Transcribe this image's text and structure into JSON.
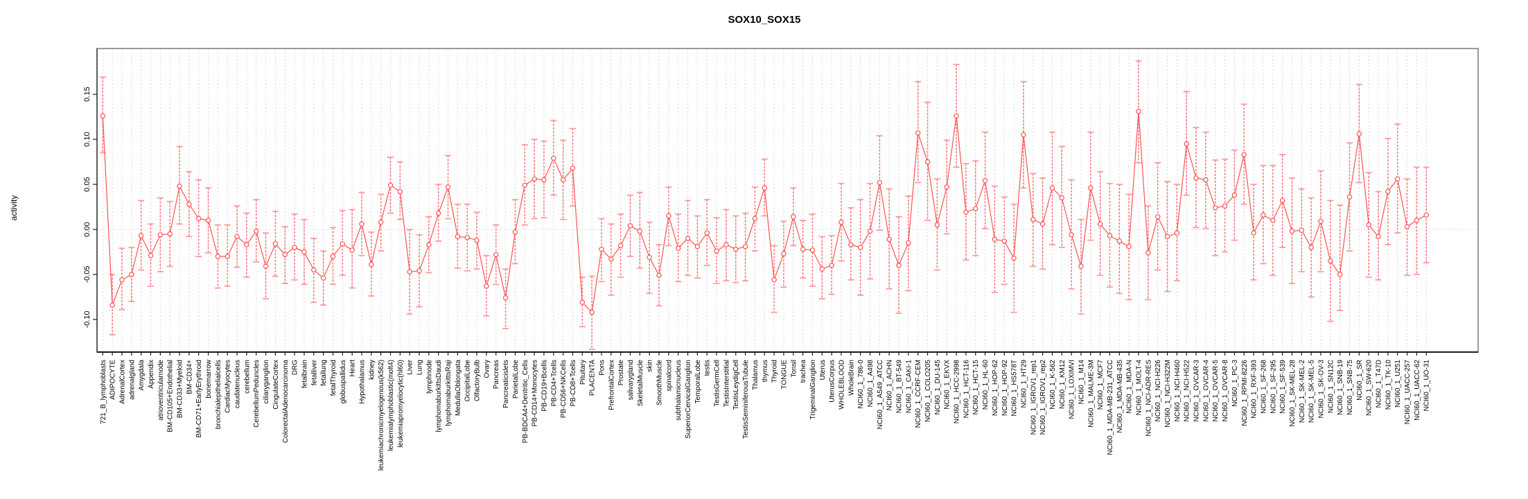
{
  "chart_data": {
    "type": "line",
    "title": "SOX10_SOX15",
    "xlabel": "",
    "ylabel": "activity",
    "legend": "none",
    "grid": "vertical dashed per category, dotted horizontal zero line",
    "marker": "open-circle",
    "error_bars": true,
    "ylim": [
      -0.136,
      0.201
    ],
    "yticks": [
      -0.1,
      -0.05,
      0.0,
      0.05,
      0.1,
      0.15
    ],
    "ytick_labels": [
      "-0.10",
      "-0.05",
      "0.00",
      "0.05",
      "0.10",
      "0.15"
    ],
    "colors": {
      "series": "#ff5050",
      "error_stem": "#ff7a7a",
      "error_cap": "#ff9a9a",
      "gridline": "#d9d9d9",
      "zero_line": "#c8c8c8",
      "box": "#9a9a9a",
      "axis": "#1a1a1a",
      "background": "#ffffff"
    },
    "categories": [
      "721_B_lymphoblasts",
      "ADIPOCYTE",
      "AdrenalCortex",
      "adrenalgland",
      "Amygdala",
      "Appendix",
      "atrioventricularnode",
      "BM-CD105+Endothelial",
      "BM-CD33+Myeloid",
      "BM-CD34+",
      "BM-CD71+EarlyErythroid",
      "bonemarrow",
      "bronchialepithelialcells",
      "CardiacMyocytes",
      "caudatenucleus",
      "cerebellum",
      "CerebellumPeduncles",
      "ciliaryganglion",
      "CingulateCortex",
      "ColorectalAdenocarcinoma",
      "DRG",
      "fetalbrain",
      "fetalliver",
      "fetallung",
      "fetalThyroid",
      "globuspallidus",
      "Heart",
      "Hypothalamus",
      "kidney",
      "leukemiachronicmyelogenous(k562)",
      "leukemialymphoblastic(molt4)",
      "leukemiapromyelocytic(hl60)",
      "Liver",
      "Lung",
      "lymphnode",
      "lymphomaburkittsDaudi",
      "lymphomaburkittsRaji",
      "MedullaOblongata",
      "OccipitalLobe",
      "OlfactoryBulb",
      "Ovary",
      "Pancreas",
      "Pancreaticislets",
      "ParietalLobe",
      "PB-BDCA4+Dentritic_Cells",
      "PB-CD14+Monocytes",
      "PB-CD19+Bcells",
      "PB-CD4+Tcells",
      "PB-CD56+NKCells",
      "PB-CD8+Tcells",
      "Pituitary",
      "PLACENTA",
      "Pons",
      "PrefrontalCortex",
      "Prostate",
      "salivarygland",
      "SkeletalMuscle",
      "skin",
      "SmoothMuscle",
      "spinalcord",
      "subthalamicnucleus",
      "SuperiorCervicalGanglion",
      "TemporalLobe",
      "testis",
      "TestisGermCell",
      "TestisInterstitial",
      "TestisLeydigCell",
      "TestisSeminiferousTubule",
      "Thalamus",
      "thymus",
      "Thyroid",
      "TONGUE",
      "Tonsil",
      "trachea",
      "TrigeminalGanglion",
      "Uterus",
      "UterusCorpus",
      "WHOLEBLOOD",
      "WholeBrain",
      "NCI60_1_786-0",
      "NCI60_1_A498",
      "NCI60_1_A549_ATCC",
      "NCI60_1_ACHN",
      "NCI60_1_BT-549",
      "NCI60_1_CAKI-1",
      "NCI60_1_CCRF-CEM",
      "NCI60_1_COLO205",
      "NCI60_1_DU-145",
      "NCI60_1_EKVX",
      "NCI60_1_HCC-2998",
      "NCI60_1_HCT-116",
      "NCI60_1_HCT-15",
      "NCI60_1_HL-60",
      "NCI60_1_HOP-62",
      "NCI60_1_HOP-92",
      "NCI60_1_HS578T",
      "NCI60_1_HT29",
      "NCI60_1_IGROV1_rep1",
      "NCI60_1_IGROV1_rep2",
      "NCI60_1_K-562",
      "NCI60_1_KM12",
      "NCI60_1_LOXIMVI",
      "NCI60_1_M14",
      "NCI60_1_MALME-3M",
      "NCI60_1_MCF7",
      "NCI60_1_MDA-MB-231_ATCC",
      "NCI60_1_MDA-MB-435",
      "NCI60_1_MDA-N",
      "NCI60_1_MOLT-4",
      "NCI60_1_NCI-ADR-RES",
      "NCI60_1_NCI-H226",
      "NCI60_1_NCI-H322M",
      "NCI60_1_NCI-H460",
      "NCI60_1_NCI-H522",
      "NCI60_1_OVCAR-3",
      "NCI60_1_OVCAR-4",
      "NCI60_1_OVCAR-5",
      "NCI60_1_OVCAR-8",
      "NCI60_1_PC-3",
      "NCI60_1_RPMI-8226",
      "NCI60_1_RXF-393",
      "NCI60_1_SF-268",
      "NCI60_1_SF-295",
      "NCI60_1_SF-539",
      "NCI60_1_SK-MEL-28",
      "NCI60_1_SK-MEL-2",
      "NCI60_1_SK-MEL-5",
      "NCI60_1_SK-OV-3",
      "NCI60_1_SN12C",
      "NCI60_1_SNB-19",
      "NCI60_1_SNB-75",
      "NCI60_1_SR",
      "NCI60_1_SW-620",
      "NCI60_1_T47D",
      "NCI60_1_TK-10",
      "NCI60_1_U251",
      "NCI60_1_UACC-257",
      "NCI60_1_UACC-62",
      "NCI60_1_UO-31"
    ],
    "values": [
      0.126,
      -0.084,
      -0.056,
      -0.05,
      -0.007,
      -0.029,
      -0.006,
      -0.005,
      0.048,
      0.028,
      0.012,
      0.01,
      -0.03,
      -0.03,
      -0.008,
      -0.017,
      -0.002,
      -0.041,
      -0.016,
      -0.028,
      -0.02,
      -0.025,
      -0.045,
      -0.054,
      -0.03,
      -0.016,
      -0.023,
      0.006,
      -0.039,
      0.008,
      0.049,
      0.042,
      -0.047,
      -0.046,
      -0.017,
      0.018,
      0.047,
      -0.008,
      -0.009,
      -0.012,
      -0.063,
      -0.028,
      -0.076,
      -0.003,
      0.049,
      0.056,
      0.055,
      0.079,
      0.055,
      0.068,
      -0.081,
      -0.092,
      -0.022,
      -0.033,
      -0.018,
      0.004,
      -0.002,
      -0.031,
      -0.051,
      0.015,
      -0.021,
      -0.01,
      -0.019,
      -0.004,
      -0.024,
      -0.017,
      -0.022,
      -0.019,
      0.012,
      0.046,
      -0.056,
      -0.027,
      0.014,
      -0.022,
      -0.023,
      -0.044,
      -0.04,
      0.008,
      -0.017,
      -0.02,
      -0.002,
      0.052,
      -0.011,
      -0.04,
      -0.015,
      0.107,
      0.075,
      0.005,
      0.047,
      0.126,
      0.019,
      0.023,
      0.054,
      -0.011,
      -0.013,
      -0.032,
      0.105,
      0.011,
      0.006,
      0.046,
      0.035,
      -0.006,
      -0.041,
      0.046,
      0.006,
      -0.007,
      -0.013,
      -0.019,
      0.131,
      -0.026,
      0.014,
      -0.008,
      -0.004,
      0.095,
      0.057,
      0.055,
      0.024,
      0.026,
      0.038,
      0.083,
      -0.004,
      0.016,
      0.01,
      0.032,
      -0.002,
      -0.001,
      -0.02,
      0.009,
      -0.035,
      -0.05,
      0.036,
      0.106,
      0.005,
      -0.008,
      0.042,
      0.056,
      0.003,
      0.01,
      0.016
    ],
    "error_low": [
      0.085,
      -0.117,
      -0.089,
      -0.08,
      -0.045,
      -0.063,
      -0.047,
      -0.041,
      0.006,
      -0.008,
      -0.03,
      -0.026,
      -0.065,
      -0.063,
      -0.042,
      -0.053,
      -0.036,
      -0.077,
      -0.052,
      -0.06,
      -0.056,
      -0.061,
      -0.081,
      -0.084,
      -0.061,
      -0.051,
      -0.065,
      -0.029,
      -0.074,
      -0.024,
      0.018,
      0.011,
      -0.094,
      -0.086,
      -0.048,
      -0.013,
      0.012,
      -0.043,
      -0.046,
      -0.044,
      -0.096,
      -0.061,
      -0.11,
      -0.038,
      0.005,
      0.012,
      0.013,
      0.038,
      0.011,
      0.026,
      -0.108,
      -0.133,
      -0.058,
      -0.073,
      -0.053,
      -0.03,
      -0.043,
      -0.071,
      -0.085,
      -0.018,
      -0.058,
      -0.051,
      -0.054,
      -0.04,
      -0.06,
      -0.057,
      -0.059,
      -0.057,
      -0.024,
      0.015,
      -0.092,
      -0.064,
      -0.018,
      -0.054,
      -0.063,
      -0.077,
      -0.072,
      -0.035,
      -0.056,
      -0.073,
      -0.055,
      -0.001,
      -0.066,
      -0.093,
      -0.068,
      0.052,
      0.01,
      -0.045,
      -0.005,
      0.069,
      -0.034,
      -0.029,
      0.001,
      -0.07,
      -0.061,
      -0.092,
      0.046,
      -0.041,
      -0.044,
      -0.017,
      -0.02,
      -0.066,
      -0.094,
      -0.012,
      -0.051,
      -0.064,
      -0.071,
      -0.078,
      0.074,
      -0.078,
      -0.045,
      -0.069,
      -0.057,
      0.038,
      0.002,
      0.001,
      -0.029,
      -0.025,
      -0.012,
      0.028,
      -0.056,
      -0.038,
      -0.051,
      -0.02,
      -0.06,
      -0.047,
      -0.075,
      -0.047,
      -0.102,
      -0.09,
      -0.024,
      0.052,
      -0.053,
      -0.056,
      -0.017,
      -0.004,
      -0.051,
      -0.05,
      -0.037
    ],
    "error_high": [
      0.169,
      -0.05,
      -0.021,
      -0.02,
      0.032,
      0.006,
      0.035,
      0.031,
      0.092,
      0.064,
      0.055,
      0.046,
      0.005,
      0.005,
      0.026,
      0.018,
      0.033,
      -0.004,
      0.02,
      0.003,
      0.017,
      0.011,
      -0.01,
      -0.024,
      0.002,
      0.021,
      0.022,
      0.041,
      -0.003,
      0.039,
      0.08,
      0.075,
      0.0,
      -0.006,
      0.014,
      0.05,
      0.082,
      0.028,
      0.028,
      0.019,
      -0.029,
      0.005,
      -0.044,
      0.033,
      0.094,
      0.1,
      0.098,
      0.121,
      0.099,
      0.112,
      -0.053,
      -0.052,
      0.012,
      0.006,
      0.017,
      0.038,
      0.041,
      0.008,
      -0.017,
      0.047,
      0.017,
      0.032,
      0.015,
      0.033,
      0.013,
      0.022,
      0.015,
      0.018,
      0.047,
      0.078,
      -0.018,
      0.009,
      0.046,
      0.01,
      0.017,
      -0.008,
      -0.007,
      0.051,
      0.024,
      0.033,
      0.051,
      0.104,
      0.045,
      0.014,
      0.037,
      0.164,
      0.141,
      0.056,
      0.099,
      0.183,
      0.073,
      0.076,
      0.108,
      0.048,
      0.036,
      0.028,
      0.164,
      0.062,
      0.057,
      0.108,
      0.092,
      0.055,
      0.011,
      0.108,
      0.064,
      0.051,
      0.05,
      0.039,
      0.187,
      0.026,
      0.074,
      0.053,
      0.05,
      0.153,
      0.113,
      0.108,
      0.077,
      0.078,
      0.088,
      0.139,
      0.05,
      0.071,
      0.071,
      0.083,
      0.057,
      0.045,
      0.035,
      0.065,
      0.032,
      0.027,
      0.096,
      0.161,
      0.063,
      0.042,
      0.101,
      0.117,
      0.056,
      0.069,
      0.069
    ]
  }
}
